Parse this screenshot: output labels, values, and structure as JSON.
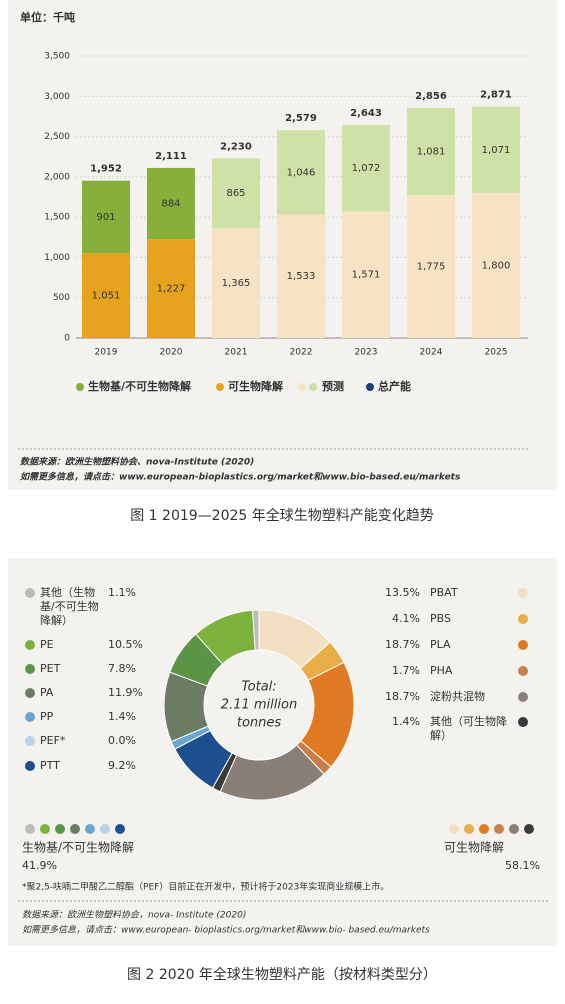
{
  "chart_data": [
    {
      "type": "bar",
      "unit": "单位：千吨",
      "categories": [
        "2019",
        "2020",
        "2021",
        "2022",
        "2023",
        "2024",
        "2025"
      ],
      "series": [
        {
          "name": "可生物降解",
          "color": "#e8a31e",
          "forecast_color": "#f6e3c4",
          "values": [
            1051,
            1227,
            1365,
            1533,
            1571,
            1775,
            1800
          ],
          "value_labels": [
            "1,051",
            "1,227",
            "1,365",
            "1,533",
            "1,571",
            "1,775",
            "1,800"
          ]
        },
        {
          "name": "生物基/不可生物降解",
          "color": "#86b03a",
          "forecast_color": "#cfe1a6",
          "values": [
            901,
            884,
            865,
            1046,
            1072,
            1081,
            1071
          ],
          "value_labels": [
            "901",
            "884",
            "865",
            "1,046",
            "1,072",
            "1,081",
            "1,071"
          ]
        }
      ],
      "forecast": {
        "name": "预测",
        "from": "2021"
      },
      "total": {
        "name": "总产能",
        "color": "#1f3f78",
        "values": [
          1952,
          2111,
          2230,
          2579,
          2643,
          2856,
          2871
        ],
        "value_labels": [
          "1,952",
          "2,111",
          "2,230",
          "2,579",
          "2,643",
          "2,856",
          "2,871"
        ]
      },
      "ylim": [
        0,
        3500
      ],
      "yticks": [
        0,
        500,
        {
          "value": 1000,
          "label": "1,000"
        },
        {
          "value": 1500,
          "label": "1,500"
        },
        {
          "value": 2000,
          "label": "2,000"
        },
        {
          "value": 2500,
          "label": "2,500"
        },
        {
          "value": 3000,
          "label": "3,000"
        },
        {
          "value": 3500,
          "label": "3,500"
        }
      ],
      "grid": true,
      "source": [
        "数据来源：欧洲生物塑料协会、nova-Institute (2020)",
        "如需更多信息，请点击：www.european-bioplastics.org/market和www.bio-based.eu/markets"
      ],
      "caption": "图 1  2019—2025 年全球生物塑料产能变化趋势"
    },
    {
      "type": "pie",
      "center_label": [
        "Total:",
        "2.11 million",
        "tonnes"
      ],
      "groups": [
        {
          "name": "生物基/不可生物降解",
          "share": "41.9%",
          "items": [
            {
              "name": "其他（生物基/不可生物降解）",
              "value": 1.1,
              "value_label": "1.1%",
              "color": "#bcbcbc"
            },
            {
              "name": "PE",
              "value": 10.5,
              "value_label": "10.5%",
              "color": "#7db23e"
            },
            {
              "name": "PET",
              "value": 7.8,
              "value_label": "7.8%",
              "color": "#5a9447"
            },
            {
              "name": "PA",
              "value": 11.9,
              "value_label": "11.9%",
              "color": "#6c7c64"
            },
            {
              "name": "PP",
              "value": 1.4,
              "value_label": "1.4%",
              "color": "#6aa6d2"
            },
            {
              "name": "PEF*",
              "value": 0.0,
              "value_label": "0.0%",
              "color": "#b8d3ea"
            },
            {
              "name": "PTT",
              "value": 9.2,
              "value_label": "9.2%",
              "color": "#1d4f8f"
            }
          ]
        },
        {
          "name": "可生物降解",
          "share": "58.1%",
          "items": [
            {
              "name": "PBAT",
              "value": 13.5,
              "value_label": "13.5%",
              "color": "#f3e0c2"
            },
            {
              "name": "PBS",
              "value": 4.1,
              "value_label": "4.1%",
              "color": "#e9ad48"
            },
            {
              "name": "PLA",
              "value": 18.7,
              "value_label": "18.7%",
              "color": "#df7a22"
            },
            {
              "name": "PHA",
              "value": 1.7,
              "value_label": "1.7%",
              "color": "#c6814b"
            },
            {
              "name": "淀粉共混物",
              "value": 18.7,
              "value_label": "18.7%",
              "color": "#8a7f77"
            },
            {
              "name": "其他（可生物降解）",
              "value": 1.4,
              "value_label": "1.4%",
              "color": "#3a3a3a"
            }
          ]
        }
      ],
      "note": "*聚2,5-呋喃二甲酸乙二醇酯（PEF）目前正在开发中，预计将于2023年实现商业规模上市。",
      "source": [
        "数据来源：欧洲生物塑料协会，nova- Institute (2020)",
        "如需更多信息，请点击：www.european- bioplastics.org/market和www.bio- based.eu/markets"
      ],
      "caption": "图 2  2020 年全球生物塑料产能（按材料类型分）"
    }
  ]
}
